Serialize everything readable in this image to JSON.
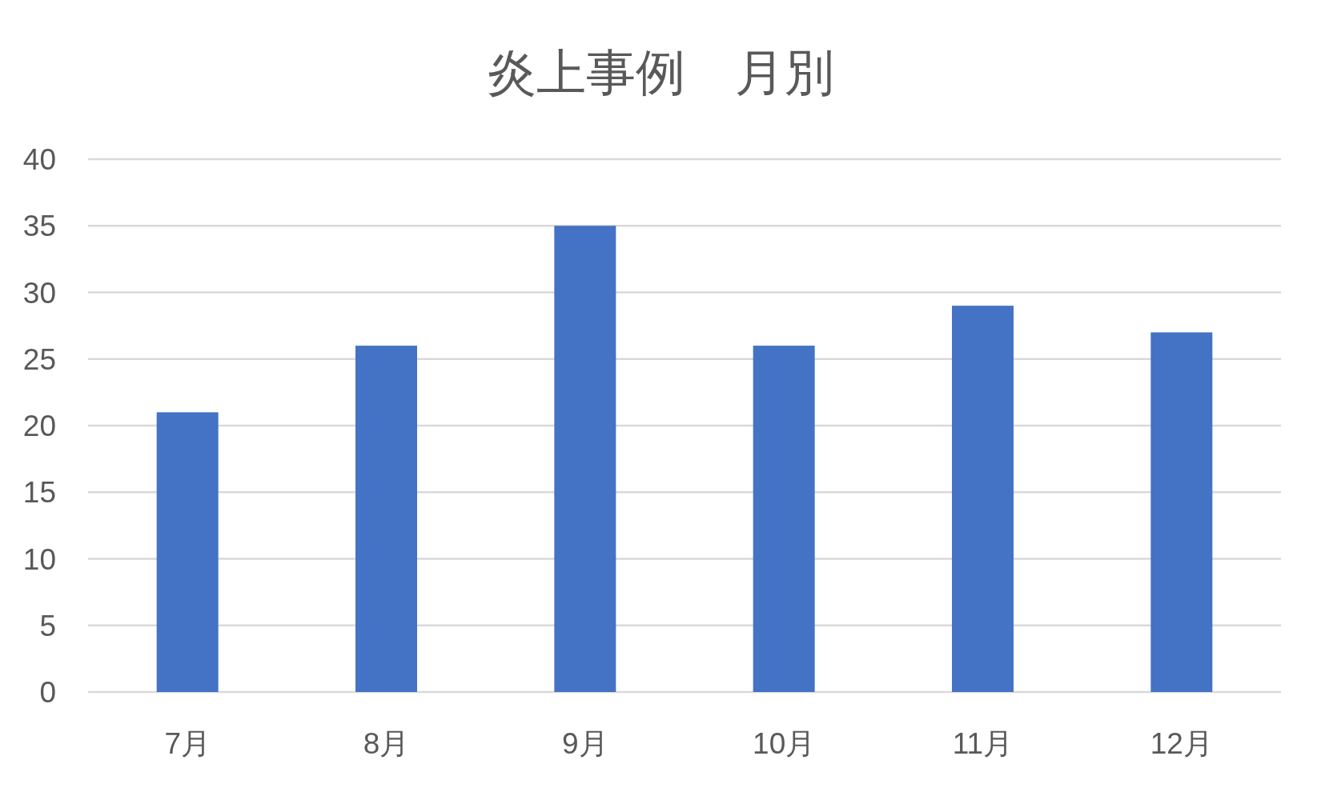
{
  "chart_data": {
    "type": "bar",
    "title": "炎上事例　月別",
    "categories": [
      "7月",
      "8月",
      "9月",
      "10月",
      "11月",
      "12月"
    ],
    "values": [
      21,
      26,
      35,
      26,
      29,
      27
    ],
    "color": "#4472c4",
    "ylim": [
      0,
      40
    ],
    "yticks": [
      0,
      5,
      10,
      15,
      20,
      25,
      30,
      35,
      40
    ],
    "grid": "y"
  }
}
